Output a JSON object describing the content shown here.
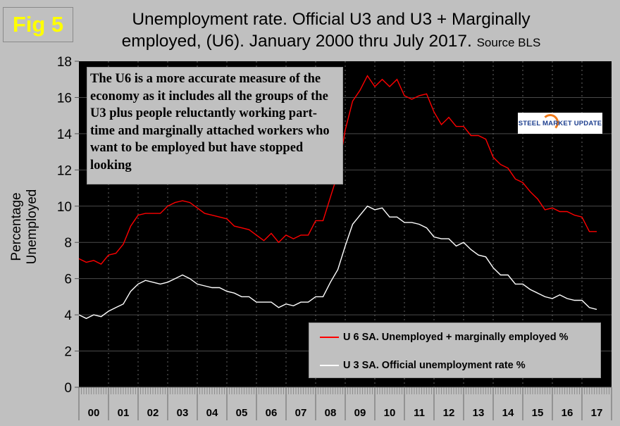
{
  "fig_label": "Fig 5",
  "chart_data": {
    "type": "line",
    "title_line1": "Unemployment rate. Official U3 and U3 + Marginally",
    "title_line2": "employed, (U6). January 2000 thru July 2017.",
    "title_source": "Source BLS",
    "ylabel": "Percentage Unemployed",
    "xlabel": "",
    "ylim": [
      0,
      18
    ],
    "yticks": [
      0,
      2,
      4,
      6,
      8,
      10,
      12,
      14,
      16,
      18
    ],
    "xlim": [
      2000,
      2018
    ],
    "xtick_labels": [
      "00",
      "01",
      "02",
      "03",
      "04",
      "05",
      "06",
      "07",
      "08",
      "09",
      "10",
      "11",
      "12",
      "13",
      "14",
      "15",
      "16",
      "17"
    ],
    "grid": true,
    "legend_position": "bottom-right",
    "x_start": "2000-01",
    "x_step_months": 3,
    "series": [
      {
        "name": "U 6 SA. Unemployed + marginally employed %",
        "color": "#ff0000",
        "values": [
          7.1,
          6.9,
          7.0,
          6.8,
          7.3,
          7.4,
          7.9,
          8.9,
          9.5,
          9.6,
          9.6,
          9.6,
          10.0,
          10.2,
          10.3,
          10.2,
          9.9,
          9.6,
          9.5,
          9.4,
          9.3,
          8.9,
          8.8,
          8.7,
          8.4,
          8.1,
          8.5,
          8.0,
          8.4,
          8.2,
          8.4,
          8.4,
          9.2,
          9.2,
          10.5,
          11.8,
          14.2,
          15.8,
          16.4,
          17.2,
          16.6,
          17.0,
          16.6,
          17.0,
          16.1,
          15.9,
          16.1,
          16.2,
          15.2,
          14.5,
          14.9,
          14.4,
          14.4,
          13.9,
          13.9,
          13.7,
          12.7,
          12.3,
          12.1,
          11.5,
          11.3,
          10.8,
          10.4,
          9.8,
          9.9,
          9.7,
          9.7,
          9.5,
          9.4,
          8.6,
          8.6
        ]
      },
      {
        "name": "U 3 SA. Official unemployment rate %",
        "color": "#ffffff",
        "values": [
          4.0,
          3.8,
          4.0,
          3.9,
          4.2,
          4.4,
          4.6,
          5.3,
          5.7,
          5.9,
          5.8,
          5.7,
          5.8,
          6.0,
          6.2,
          6.0,
          5.7,
          5.6,
          5.5,
          5.5,
          5.3,
          5.2,
          5.0,
          5.0,
          4.7,
          4.7,
          4.7,
          4.4,
          4.6,
          4.5,
          4.7,
          4.7,
          5.0,
          5.0,
          5.8,
          6.5,
          7.8,
          9.0,
          9.5,
          10.0,
          9.8,
          9.9,
          9.4,
          9.4,
          9.1,
          9.1,
          9.0,
          8.8,
          8.3,
          8.2,
          8.2,
          7.8,
          8.0,
          7.6,
          7.3,
          7.2,
          6.6,
          6.2,
          6.2,
          5.7,
          5.7,
          5.4,
          5.2,
          5.0,
          4.9,
          5.1,
          4.9,
          4.8,
          4.8,
          4.4,
          4.3
        ]
      }
    ],
    "annotation": "The U6 is a more accurate measure of the economy as it includes all the groups of the U3 plus people reluctantly working part-time and marginally attached workers who want to be employed but have stopped looking"
  },
  "logo_text": "STEEL MARKET UPDATE"
}
